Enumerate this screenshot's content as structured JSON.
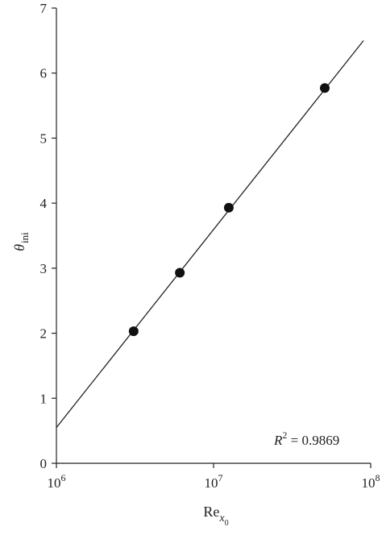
{
  "chart_data": {
    "type": "scatter",
    "xscale": "log",
    "xlim": [
      1000000,
      100000000
    ],
    "ylim": [
      0,
      7
    ],
    "x_ticks": [
      {
        "value": 1000000,
        "base": "10",
        "exp": "6"
      },
      {
        "value": 10000000,
        "base": "10",
        "exp": "7"
      },
      {
        "value": 100000000,
        "base": "10",
        "exp": "8"
      }
    ],
    "y_ticks": [
      {
        "value": 0,
        "label": "0"
      },
      {
        "value": 1,
        "label": "1"
      },
      {
        "value": 2,
        "label": "2"
      },
      {
        "value": 3,
        "label": "3"
      },
      {
        "value": 4,
        "label": "4"
      },
      {
        "value": 5,
        "label": "5"
      },
      {
        "value": 6,
        "label": "6"
      },
      {
        "value": 7,
        "label": "7"
      }
    ],
    "xlabel": {
      "main": "Re",
      "sub": "x",
      "subsub": "0"
    },
    "ylabel": {
      "main": "θ",
      "sub": "ini"
    },
    "points": [
      {
        "x": 3100000,
        "y": 2.03
      },
      {
        "x": 6100000,
        "y": 2.93
      },
      {
        "x": 12500000,
        "y": 3.93
      },
      {
        "x": 51000000,
        "y": 5.77
      }
    ],
    "fit_line": {
      "x": [
        1000000,
        90000000
      ],
      "y": [
        0.55,
        6.5
      ]
    },
    "annotation": {
      "symbol": "R",
      "power": "2",
      "text": " = 0.9869"
    },
    "grid": false
  }
}
